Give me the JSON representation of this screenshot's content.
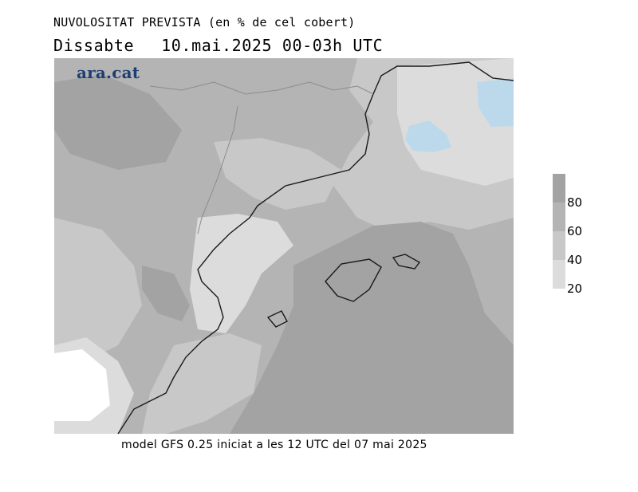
{
  "title": {
    "line1": "NUVOLOSITAT PREVISTA (en % de cel cobert)",
    "day": "Dissabte",
    "datetime": "10.mai.2025 00-03h UTC"
  },
  "logo_text": "ara.cat",
  "legend": {
    "labels": [
      "80",
      "60",
      "40",
      "20"
    ],
    "colors": [
      "#a3a3a3",
      "#b4b4b4",
      "#c8c8c8",
      "#dcdcdc"
    ]
  },
  "map_colors": {
    "very_low": "#ffffff",
    "low": "#dcdcdc",
    "mid": "#c8c8c8",
    "high": "#b4b4b4",
    "very_high": "#a3a3a3",
    "clear_blue": "#bcd9ec",
    "coast": "#1a1a1a",
    "border": "#8c8c8c"
  },
  "footer": "model GFS 0.25 iniciat a les 12 UTC del 07 mai 2025"
}
